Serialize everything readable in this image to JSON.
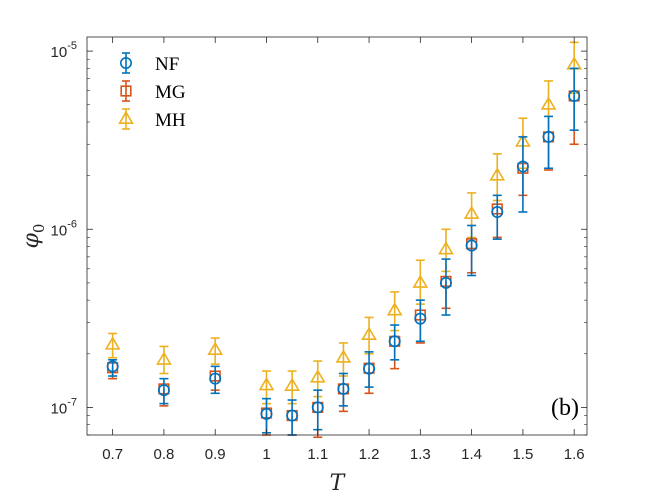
{
  "chart_data": {
    "type": "scatter",
    "title": "",
    "panel_label": "(b)",
    "xlabel": "T",
    "ylabel": "φ",
    "ylabel_subscript": "0",
    "xlim": [
      0.65,
      1.625
    ],
    "ylim": [
      7e-08,
      1.2e-05
    ],
    "yscale": "log",
    "legend_position": "top-left",
    "x_ticks": [
      0.7,
      0.8,
      0.9,
      1.0,
      1.1,
      1.2,
      1.3,
      1.4,
      1.5,
      1.6
    ],
    "x_tick_labels": [
      "0.7",
      "0.8",
      "0.9",
      "1",
      "1.1",
      "1.2",
      "1.3",
      "1.4",
      "1.5",
      "1.6"
    ],
    "y_ticks": [
      1e-07,
      1e-06,
      1e-05
    ],
    "y_tick_labels": [
      {
        "base": "10",
        "exp": "-7"
      },
      {
        "base": "10",
        "exp": "-6"
      },
      {
        "base": "10",
        "exp": "-5"
      }
    ],
    "x": [
      0.7,
      0.8,
      0.9,
      1.0,
      1.05,
      1.1,
      1.15,
      1.2,
      1.25,
      1.3,
      1.35,
      1.4,
      1.45,
      1.5,
      1.55,
      1.6
    ],
    "series": [
      {
        "name": "NF",
        "marker": "circle",
        "color": "#0072BD",
        "values": [
          1.7e-07,
          1.25e-07,
          1.45e-07,
          9.2e-08,
          9e-08,
          1e-07,
          1.27e-07,
          1.65e-07,
          2.35e-07,
          3.15e-07,
          5e-07,
          8.1e-07,
          1.25e-06,
          2.25e-06,
          3.3e-06,
          5.6e-06
        ],
        "err_low": [
          1.5e-07,
          1.05e-07,
          1.2e-07,
          7.2e-08,
          7e-08,
          7.5e-08,
          1.02e-07,
          1.3e-07,
          1.85e-07,
          2.35e-07,
          3.3e-07,
          5.5e-07,
          8.8e-07,
          1.25e-06,
          2.2e-06,
          3.6e-06
        ],
        "err_high": [
          1.85e-07,
          1.45e-07,
          1.7e-07,
          1.12e-07,
          1.1e-07,
          1.25e-07,
          1.55e-07,
          2.05e-07,
          2.9e-07,
          4e-07,
          6.8e-07,
          1.05e-06,
          1.55e-06,
          3.3e-06,
          4.3e-06,
          8e-06
        ]
      },
      {
        "name": "MG",
        "marker": "square",
        "color": "#D95319",
        "values": [
          1.67e-07,
          1.27e-07,
          1.5e-07,
          9.3e-08,
          9e-08,
          1e-07,
          1.27e-07,
          1.66e-07,
          2.35e-07,
          3.3e-07,
          5.1e-07,
          8.3e-07,
          1.3e-06,
          2.2e-06,
          3.3e-06,
          5.6e-06
        ],
        "err_low": [
          1.45e-07,
          1.02e-07,
          1.25e-07,
          7e-08,
          7e-08,
          6.8e-08,
          9.5e-08,
          1.2e-07,
          1.65e-07,
          2.3e-07,
          3.6e-07,
          5.7e-07,
          9e-07,
          1.55e-06,
          2.15e-06,
          3e-06
        ]
      },
      {
        "name": "MH",
        "marker": "triangle",
        "color": "#EDB120",
        "values": [
          2.25e-07,
          1.85e-07,
          2.1e-07,
          1.33e-07,
          1.32e-07,
          1.47e-07,
          1.9e-07,
          2.55e-07,
          3.5e-07,
          5e-07,
          7.7e-07,
          1.22e-06,
          2e-06,
          3.1e-06,
          5e-06,
          8.4e-06
        ],
        "err_low": [
          1.9e-07,
          1.55e-07,
          1.75e-07,
          1.05e-07,
          1.05e-07,
          1.15e-07,
          1.5e-07,
          2e-07,
          2.7e-07,
          3.8e-07,
          5.8e-07,
          9e-07,
          1.45e-06,
          2.2e-06,
          3.5e-06,
          5.8e-06
        ],
        "err_high": [
          2.6e-07,
          2.2e-07,
          2.45e-07,
          1.6e-07,
          1.6e-07,
          1.82e-07,
          2.3e-07,
          3.2e-07,
          4.45e-07,
          6.7e-07,
          1e-06,
          1.6e-06,
          2.65e-06,
          4.2e-06,
          6.8e-06,
          1.12e-05
        ]
      }
    ]
  }
}
